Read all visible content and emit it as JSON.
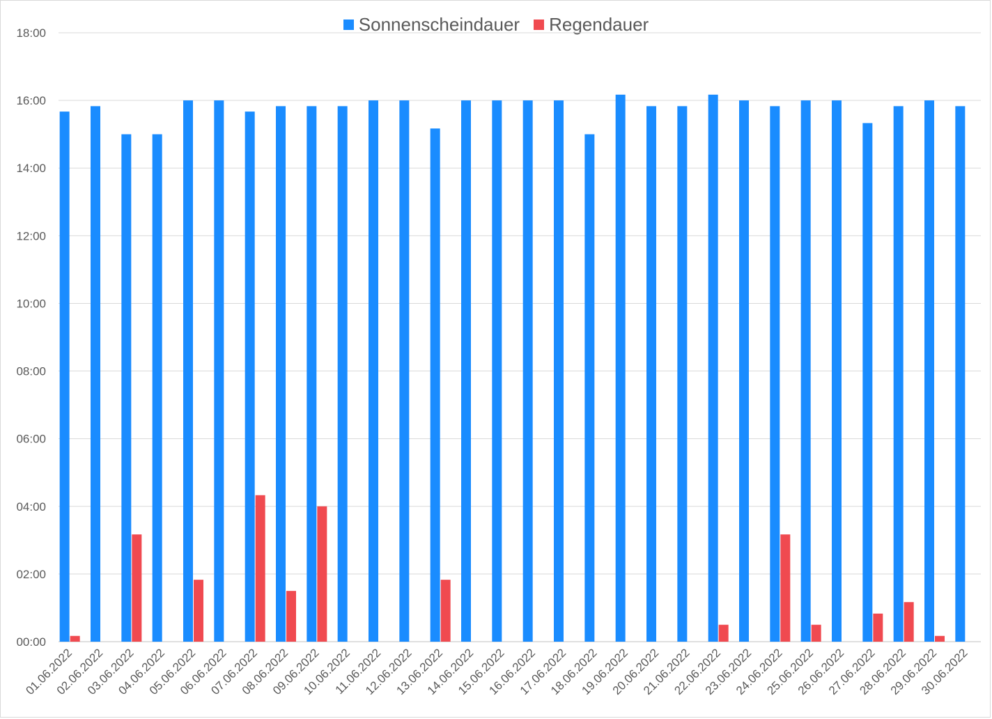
{
  "chart_data": {
    "type": "bar",
    "title": "",
    "xlabel": "",
    "ylabel": "",
    "ylim_hours": [
      0,
      18
    ],
    "y_tick_labels": [
      "00:00",
      "02:00",
      "04:00",
      "06:00",
      "08:00",
      "10:00",
      "12:00",
      "14:00",
      "16:00",
      "18:00"
    ],
    "grid": true,
    "legend_position": "top-center",
    "categories": [
      "01.06.2022",
      "02.06.2022",
      "03.06.2022",
      "04.06.2022",
      "05.06.2022",
      "06.06.2022",
      "07.06.2022",
      "08.06.2022",
      "09.06.2022",
      "10.06.2022",
      "11.06.2022",
      "12.06.2022",
      "13.06.2022",
      "14.06.2022",
      "15.06.2022",
      "16.06.2022",
      "17.06.2022",
      "18.06.2022",
      "19.06.2022",
      "20.06.2022",
      "21.06.2022",
      "22.06.2022",
      "23.06.2022",
      "24.06.2022",
      "25.06.2022",
      "26.06.2022",
      "27.06.2022",
      "28.06.2022",
      "29.06.2022",
      "30.06.2022"
    ],
    "series": [
      {
        "name": "Sonnenscheindauer",
        "color": "#1a8cff",
        "values_hours": [
          15.67,
          15.83,
          15.0,
          15.0,
          16.0,
          16.0,
          15.67,
          15.83,
          15.83,
          15.83,
          16.0,
          16.0,
          15.17,
          16.0,
          16.0,
          16.0,
          16.0,
          15.0,
          16.17,
          15.83,
          15.83,
          16.17,
          16.0,
          15.83,
          16.0,
          16.0,
          15.33,
          15.83,
          16.0,
          15.83
        ]
      },
      {
        "name": "Regendauer",
        "color": "#f04a50",
        "values_hours": [
          0.17,
          0,
          3.17,
          0,
          1.83,
          0,
          4.33,
          1.5,
          4.0,
          0,
          0,
          0,
          1.83,
          0,
          0,
          0,
          0,
          0,
          0,
          0,
          0,
          0.5,
          0,
          3.17,
          0.5,
          0,
          0.83,
          1.17,
          0.17,
          0
        ]
      }
    ]
  }
}
